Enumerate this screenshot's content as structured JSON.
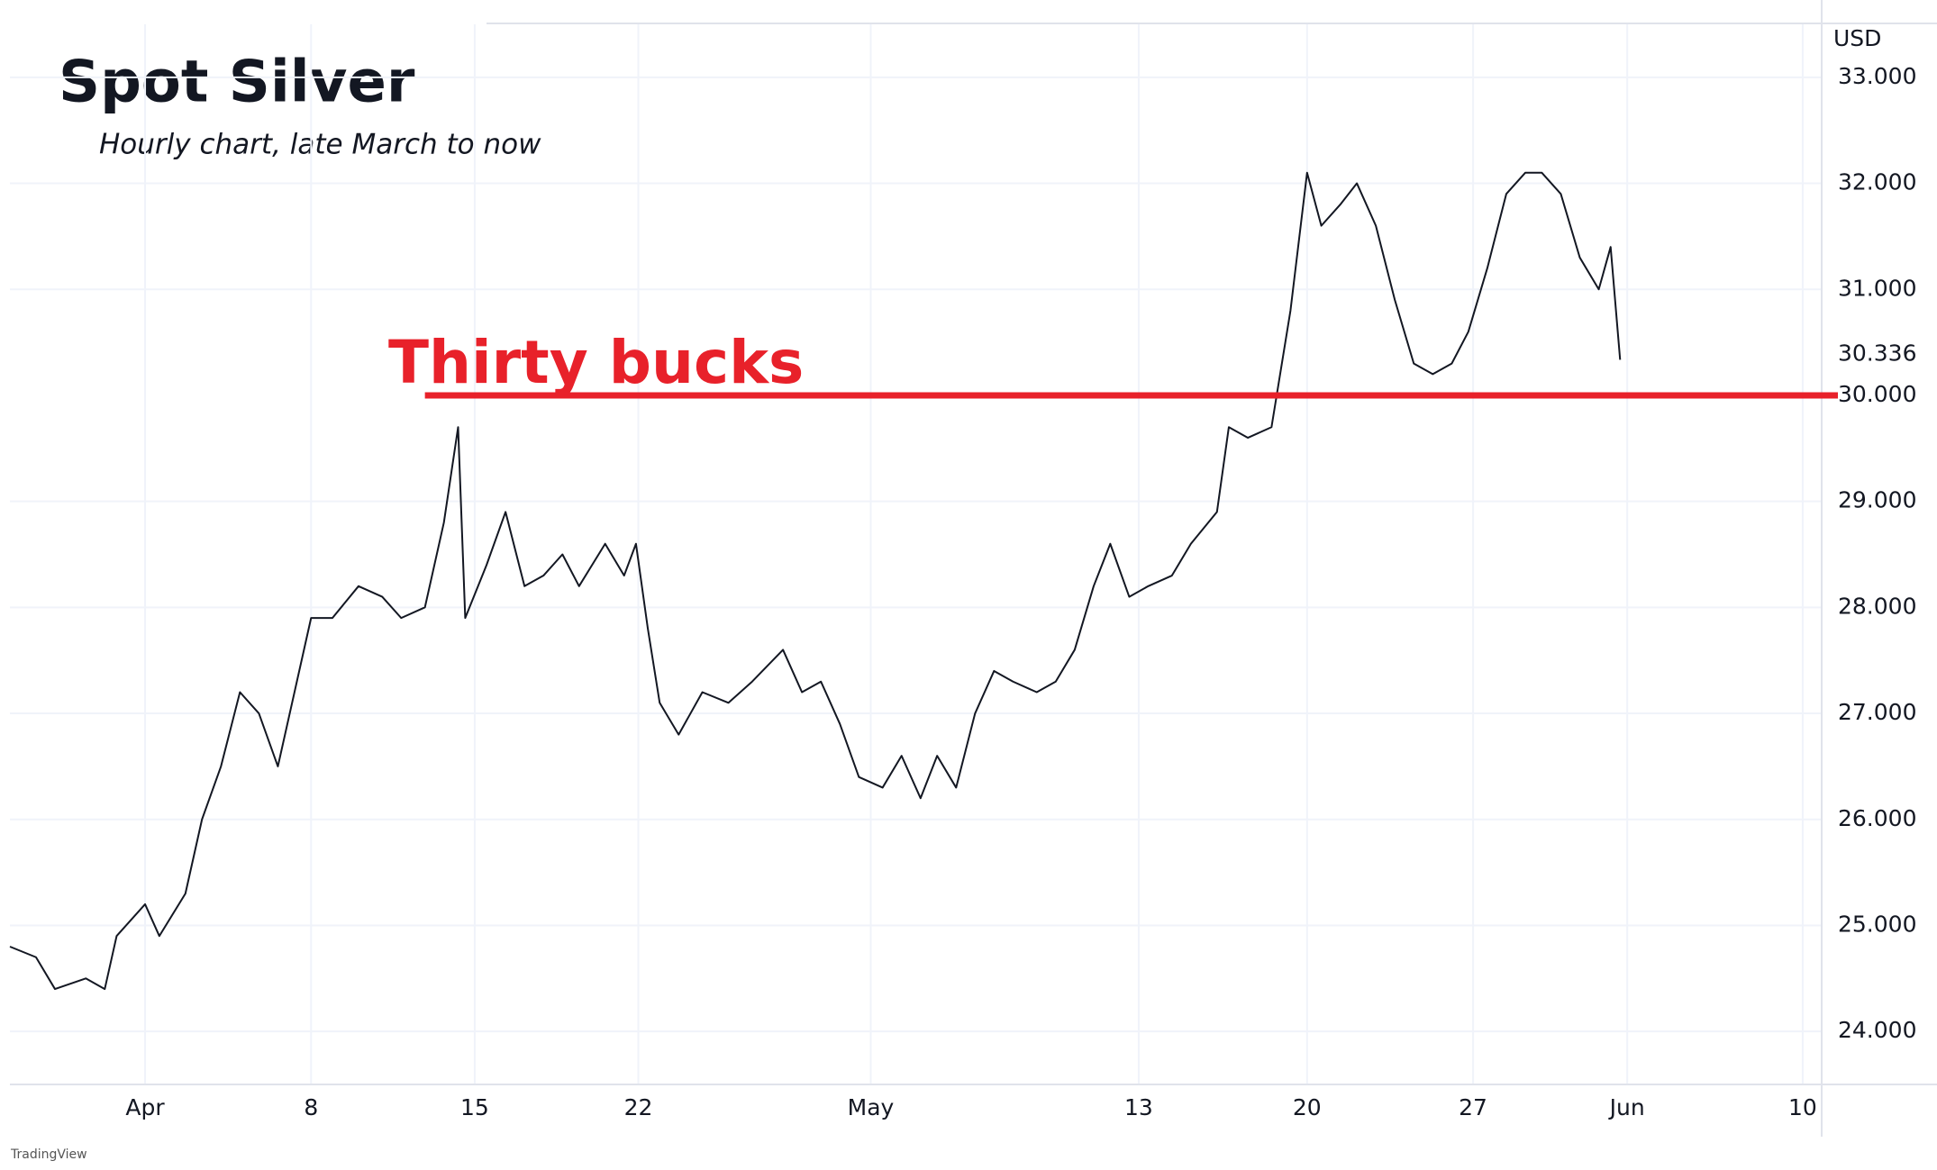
{
  "chart_data": {
    "type": "line",
    "title": "Spot Silver",
    "subtitle": "Hourly chart, late March to now",
    "currency": "USD",
    "source": "TradingView",
    "x": [
      -5.7,
      -4.6,
      -3.8,
      -2.5,
      -1.7,
      -1.2,
      0,
      0.6,
      1.7,
      2.4,
      3.2,
      4.0,
      4.8,
      5.6,
      6.4,
      7.0,
      7.9,
      9.0,
      10.0,
      10.8,
      11.8,
      12.6,
      13.2,
      13.5,
      14.4,
      15.2,
      16.0,
      16.8,
      17.6,
      18.3,
      19.4,
      20.2,
      20.7,
      21.2,
      21.7,
      22.5,
      23.5,
      24.6,
      25.6,
      26.9,
      27.7,
      28.5,
      29.3,
      30.1,
      31.1,
      31.9,
      32.7,
      33.4,
      34.2,
      35.0,
      35.8,
      36.6,
      37.6,
      38.4,
      39.2,
      40.0,
      40.7,
      41.5,
      42.3,
      43.3,
      44.1,
      45.2,
      45.7,
      46.5,
      47.5,
      48.3,
      49.0,
      49.6,
      50.4,
      51.1,
      51.9,
      52.7,
      53.5,
      54.3,
      55.1,
      55.8,
      56.6,
      57.4,
      58.2,
      58.9,
      59.7,
      60.5,
      61.3,
      61.8,
      62.2
    ],
    "series": [
      {
        "name": "Spot Silver",
        "color": "#131722",
        "values": [
          24.8,
          24.7,
          24.4,
          24.5,
          24.4,
          24.9,
          25.2,
          24.9,
          25.3,
          26.0,
          26.5,
          27.2,
          27.0,
          26.5,
          27.3,
          27.9,
          27.9,
          28.2,
          28.1,
          27.9,
          28.0,
          28.8,
          29.7,
          27.9,
          28.4,
          28.9,
          28.2,
          28.3,
          28.5,
          28.2,
          28.6,
          28.3,
          28.6,
          27.8,
          27.1,
          26.8,
          27.2,
          27.1,
          27.3,
          27.6,
          27.2,
          27.3,
          26.9,
          26.4,
          26.3,
          26.6,
          26.2,
          26.6,
          26.3,
          27.0,
          27.4,
          27.3,
          27.2,
          27.3,
          27.6,
          28.2,
          28.6,
          28.1,
          28.2,
          28.3,
          28.6,
          28.9,
          29.7,
          29.6,
          29.7,
          30.8,
          32.1,
          31.6,
          31.8,
          32.0,
          31.6,
          30.9,
          30.3,
          30.2,
          30.3,
          30.6,
          31.2,
          31.9,
          32.1,
          32.1,
          31.9,
          31.3,
          31.0,
          31.4,
          30.336
        ],
        "value_labels": {
          "84": "30.336"
        }
      }
    ],
    "annotation": {
      "text": "Thirty bucks",
      "value": 30,
      "label": "30.000",
      "x_start": 11.8,
      "color": "#e8212a"
    },
    "xlim": [
      -5.7,
      70.7
    ],
    "xticks": [
      {
        "value": 0,
        "label": "Apr"
      },
      {
        "value": 7,
        "label": "8"
      },
      {
        "value": 13.9,
        "label": "15"
      },
      {
        "value": 20.8,
        "label": "22"
      },
      {
        "value": 30.6,
        "label": "May"
      },
      {
        "value": 41.9,
        "label": "13"
      },
      {
        "value": 49,
        "label": "20"
      },
      {
        "value": 56,
        "label": "27"
      },
      {
        "value": 62.5,
        "label": "Jun"
      },
      {
        "value": 69.9,
        "label": "10"
      }
    ],
    "ylim": [
      23.5,
      33.5
    ],
    "yticks": [
      {
        "value": 24,
        "label": "24.000"
      },
      {
        "value": 25,
        "label": "25.000"
      },
      {
        "value": 26,
        "label": "26.000"
      },
      {
        "value": 27,
        "label": "27.000"
      },
      {
        "value": 28,
        "label": "28.000"
      },
      {
        "value": 29,
        "label": "29.000"
      },
      {
        "value": 31,
        "label": "31.000"
      },
      {
        "value": 32,
        "label": "32.000"
      },
      {
        "value": 33,
        "label": "33.000"
      }
    ],
    "grid": true
  }
}
